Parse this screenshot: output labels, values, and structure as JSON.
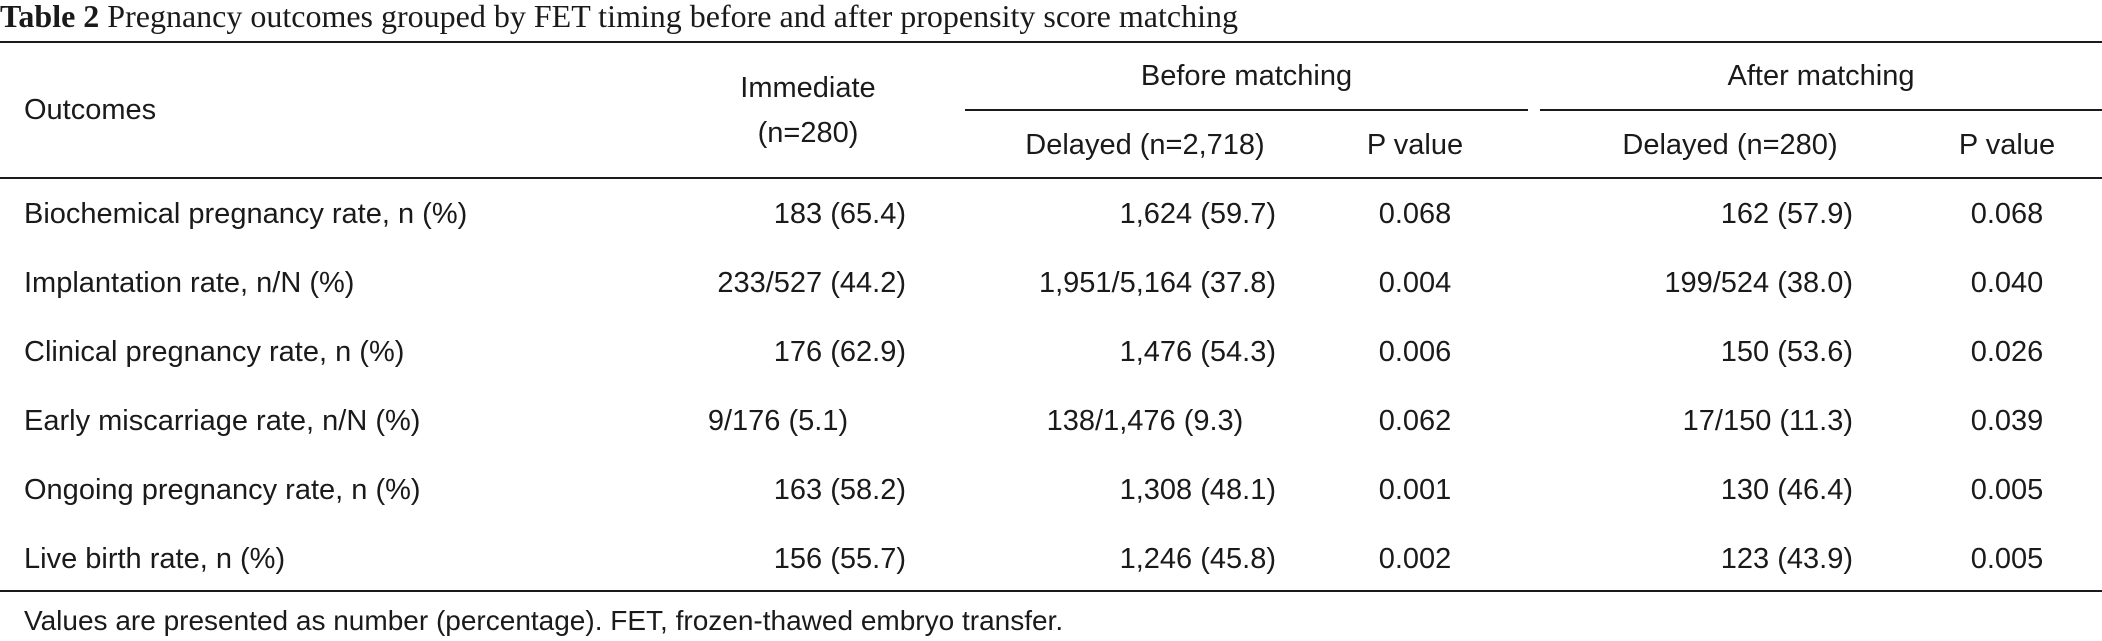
{
  "caption": {
    "label": "Table 2",
    "text": "Pregnancy outcomes grouped by FET timing before and after propensity score matching"
  },
  "table": {
    "header": {
      "outcomes": "Outcomes",
      "immediate": "Immediate",
      "immediate_n": "(n=280)",
      "before_group": "Before matching",
      "after_group": "After matching",
      "before_delayed": "Delayed (n=2,718)",
      "before_p": "P value",
      "after_delayed": "Delayed (n=280)",
      "after_p": "P value"
    },
    "rows": [
      {
        "outcome": "Biochemical pregnancy rate, n (%)",
        "immediate": "183 (65.4)",
        "before_delayed": "1,624 (59.7)",
        "before_p": "0.068",
        "after_delayed": "162 (57.9)",
        "after_p": "0.068"
      },
      {
        "outcome": "Implantation rate, n/N (%)",
        "immediate": "233/527 (44.2)",
        "before_delayed": "1,951/5,164 (37.8)",
        "before_p": "0.004",
        "after_delayed": "199/524 (38.0)",
        "after_p": "0.040"
      },
      {
        "outcome": "Clinical pregnancy rate, n (%)",
        "immediate": "176 (62.9)",
        "before_delayed": "1,476 (54.3)",
        "before_p": "0.006",
        "after_delayed": "150 (53.6)",
        "after_p": "0.026"
      },
      {
        "outcome": "Early miscarriage rate, n/N (%)",
        "immediate": "9/176 (5.1)",
        "before_delayed": "138/1,476 (9.3)",
        "before_p": "0.062",
        "after_delayed": "17/150 (11.3)",
        "after_p": "0.039"
      },
      {
        "outcome": "Ongoing pregnancy rate, n (%)",
        "immediate": "163 (58.2)",
        "before_delayed": "1,308 (48.1)",
        "before_p": "0.001",
        "after_delayed": "130 (46.4)",
        "after_p": "0.005"
      },
      {
        "outcome": "Live birth rate, n (%)",
        "immediate": "156 (55.7)",
        "before_delayed": "1,246 (45.8)",
        "before_p": "0.002",
        "after_delayed": "123 (43.9)",
        "after_p": "0.005"
      }
    ]
  },
  "footnote": "Values are presented as number (percentage). FET, frozen-thawed embryo transfer."
}
